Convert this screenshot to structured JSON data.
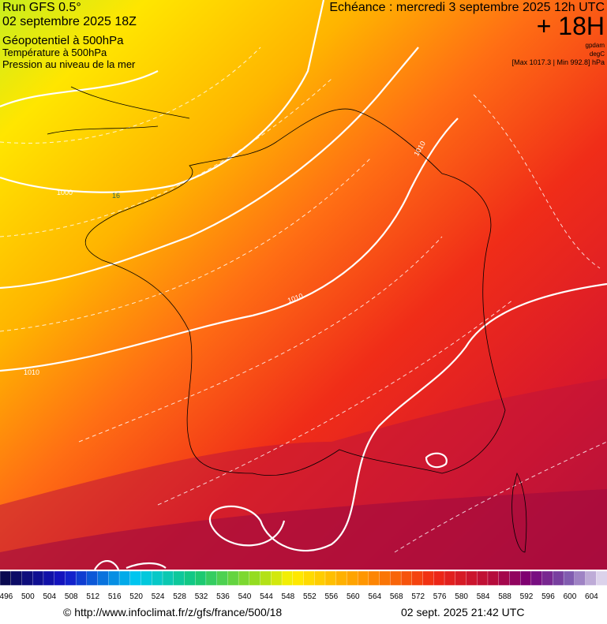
{
  "header": {
    "run": "Run GFS 0.5°",
    "date": "02 septembre 2025 18Z",
    "field1": "Géopotentiel à 500hPa",
    "field2": "Température à 500hPa",
    "field3": "Pression au niveau de la mer",
    "forecast": "Echéance : mercredi 3 septembre 2025 12h UTC",
    "lead": "+ 18H",
    "unit1": "gpdam",
    "unit2": "degC",
    "extremes": "[Max 1017.3 | Min 992.8] hPa"
  },
  "map": {
    "contour_labels": [
      "1000",
      "16",
      "1010",
      "1010",
      "1010"
    ]
  },
  "colorbar": {
    "labels": [
      496,
      500,
      504,
      508,
      512,
      516,
      520,
      524,
      528,
      532,
      536,
      540,
      544,
      548,
      552,
      556,
      560,
      564,
      568,
      572,
      576,
      580,
      584,
      588,
      592,
      596,
      600,
      604
    ]
  },
  "footer": {
    "source": "© http://www.infoclimat.fr/z/gfs/france/500/18",
    "timestamp": "02 sept. 2025 21:42 UTC"
  }
}
